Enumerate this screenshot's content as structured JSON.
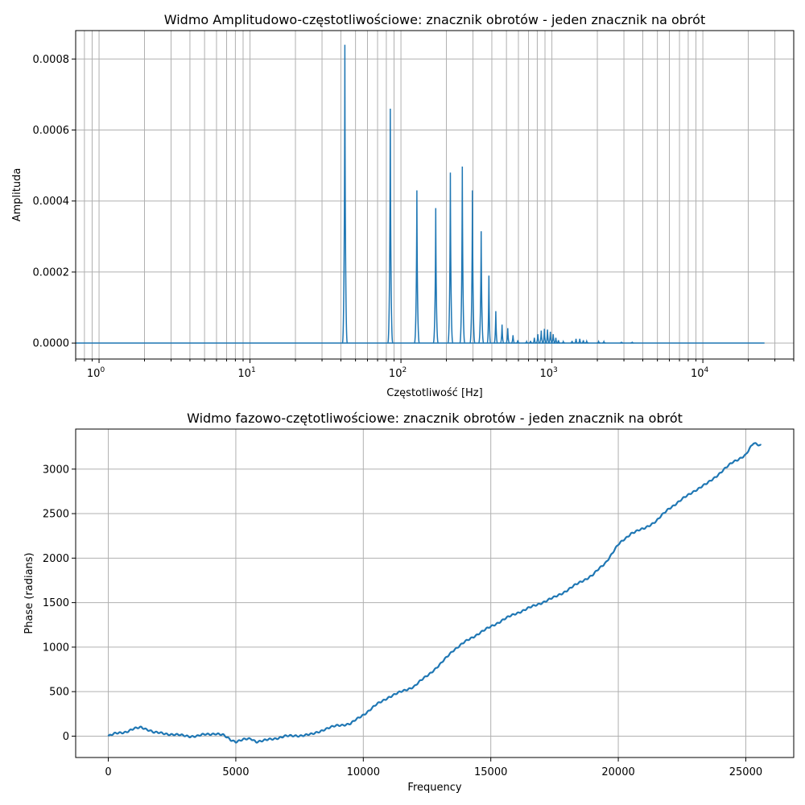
{
  "colors": {
    "series": "#1f77b4",
    "grid": "#b0b0b0"
  },
  "chart_data": [
    {
      "type": "line",
      "title": "Widmo Amplitudowo-częstotliwościowe: znacznik obrotów - jeden znacznik na obrót",
      "xlabel": "Częstotliwość [Hz]",
      "ylabel": "Amplituda",
      "xscale": "log",
      "xlim": [
        0.7,
        40000
      ],
      "ylim": [
        -4.5e-05,
        0.00088
      ],
      "grid": "both-major-minor-x",
      "x_ticks": [
        {
          "value": 1,
          "base": "10",
          "exp": "0"
        },
        {
          "value": 10,
          "base": "10",
          "exp": "1"
        },
        {
          "value": 100,
          "base": "10",
          "exp": "2"
        },
        {
          "value": 1000,
          "base": "10",
          "exp": "3"
        },
        {
          "value": 10000,
          "base": "10",
          "exp": "4"
        }
      ],
      "y_ticks": [
        {
          "value": 0,
          "label": "0.0000"
        },
        {
          "value": 0.0002,
          "label": "0.0002"
        },
        {
          "value": 0.0004,
          "label": "0.0004"
        },
        {
          "value": 0.0006,
          "label": "0.0006"
        },
        {
          "value": 0.0008,
          "label": "0.0008"
        }
      ],
      "baseline_range": [
        0.7,
        25600
      ],
      "peaks": [
        {
          "f": 42.5,
          "a": 0.00084
        },
        {
          "f": 85,
          "a": 0.00066
        },
        {
          "f": 127.5,
          "a": 0.00043
        },
        {
          "f": 170,
          "a": 0.00038
        },
        {
          "f": 212.5,
          "a": 0.00048
        },
        {
          "f": 255,
          "a": 0.000497
        },
        {
          "f": 297.5,
          "a": 0.00043
        },
        {
          "f": 340,
          "a": 0.000315
        },
        {
          "f": 382.5,
          "a": 0.00019
        },
        {
          "f": 425,
          "a": 9e-05
        },
        {
          "f": 467.5,
          "a": 5.2e-05
        },
        {
          "f": 510,
          "a": 4.2e-05
        },
        {
          "f": 552.5,
          "a": 2.2e-05
        },
        {
          "f": 595,
          "a": 8e-06
        },
        {
          "f": 680,
          "a": 4e-06
        },
        {
          "f": 722,
          "a": 6e-06
        },
        {
          "f": 765,
          "a": 1.5e-05
        },
        {
          "f": 807,
          "a": 2.5e-05
        },
        {
          "f": 850,
          "a": 3.5e-05
        },
        {
          "f": 892,
          "a": 4e-05
        },
        {
          "f": 935,
          "a": 3.8e-05
        },
        {
          "f": 977,
          "a": 3.2e-05
        },
        {
          "f": 1020,
          "a": 2.5e-05
        },
        {
          "f": 1062,
          "a": 1.5e-05
        },
        {
          "f": 1105,
          "a": 8e-06
        },
        {
          "f": 1190,
          "a": 4e-06
        },
        {
          "f": 1360,
          "a": 6e-06
        },
        {
          "f": 1445,
          "a": 1.2e-05
        },
        {
          "f": 1530,
          "a": 1.2e-05
        },
        {
          "f": 1615,
          "a": 8e-06
        },
        {
          "f": 1700,
          "a": 5e-06
        },
        {
          "f": 2040,
          "a": 4e-06
        },
        {
          "f": 2210,
          "a": 4e-06
        },
        {
          "f": 2890,
          "a": 2e-06
        },
        {
          "f": 3400,
          "a": 2e-06
        }
      ]
    },
    {
      "type": "line",
      "title": "Widmo fazowo-czętotliwościowe: znacznik obrotów - jeden znacznik na obrót",
      "xlabel": "Frequency",
      "ylabel": "Phase (radians)",
      "xlim": [
        -1280,
        26880
      ],
      "ylim": [
        -240,
        3450
      ],
      "grid": "both",
      "x_ticks": [
        0,
        5000,
        10000,
        15000,
        20000,
        25000
      ],
      "y_ticks": [
        0,
        500,
        1000,
        1500,
        2000,
        2500,
        3000
      ],
      "x": [
        0,
        300,
        700,
        1000,
        1300,
        1600,
        1800,
        2200,
        2500,
        2800,
        3200,
        3500,
        3800,
        4200,
        4500,
        4800,
        5000,
        5300,
        5600,
        5800,
        6100,
        6500,
        6900,
        7200,
        7600,
        8000,
        8500,
        9000,
        9500,
        10000,
        10500,
        11000,
        11500,
        12000,
        12500,
        13000,
        13500,
        14000,
        14500,
        15000,
        15500,
        16000,
        16500,
        17000,
        17500,
        18000,
        18500,
        19000,
        19500,
        20000,
        20500,
        21000,
        21500,
        22000,
        22500,
        23000,
        23500,
        24000,
        24500,
        25000,
        25300,
        25600
      ],
      "y": [
        0,
        30,
        50,
        80,
        100,
        70,
        40,
        30,
        20,
        10,
        0,
        0,
        20,
        30,
        10,
        -40,
        -60,
        -40,
        -30,
        -60,
        -50,
        -30,
        0,
        0,
        10,
        20,
        80,
        120,
        140,
        240,
        350,
        440,
        500,
        560,
        680,
        800,
        960,
        1060,
        1150,
        1230,
        1310,
        1380,
        1440,
        1500,
        1560,
        1640,
        1730,
        1810,
        1950,
        2150,
        2280,
        2330,
        2420,
        2560,
        2660,
        2760,
        2840,
        2960,
        3080,
        3160,
        3290,
        3270
      ]
    }
  ]
}
